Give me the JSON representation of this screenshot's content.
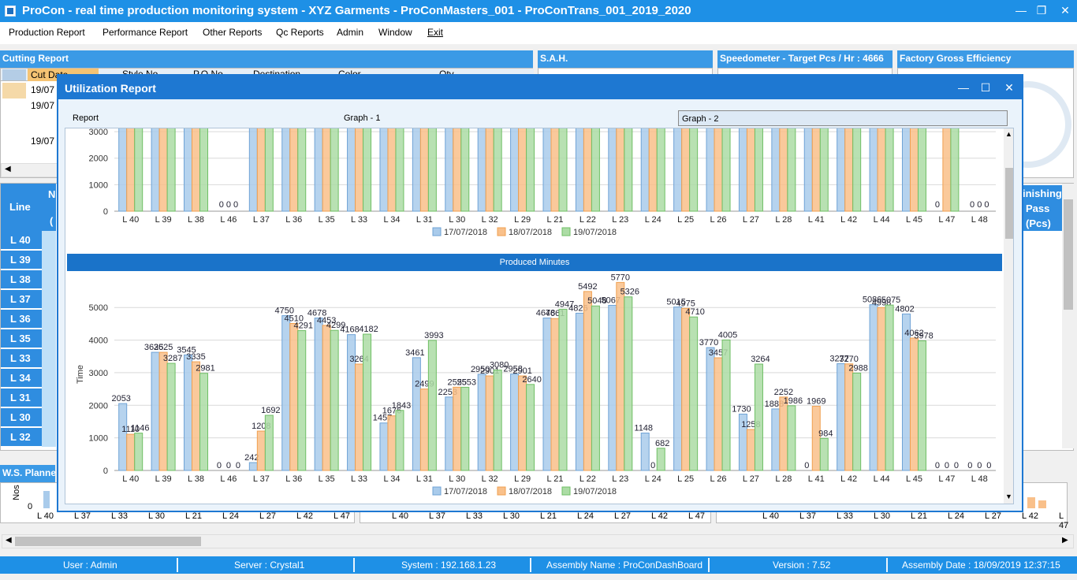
{
  "window": {
    "title": "ProCon - real time production monitoring system - XYZ Garments - ProConMasters_001 - ProConTrans_001_2019_2020",
    "minimize": "—",
    "restore": "❐",
    "close": "✕"
  },
  "menu": [
    "Production Report",
    "Performance Report",
    "Other Reports",
    "Qc Reports",
    "Admin",
    "Window",
    "Exit"
  ],
  "background": {
    "cutting_report": "Cutting Report",
    "cutting_cols": [
      "Cut Date",
      "Style No",
      "P.O No",
      "Destination",
      "Color",
      "Qty"
    ],
    "cutting_rows": [
      "19/07",
      "19/07",
      "19/07"
    ],
    "sah": "S.A.H.",
    "speedometer": "Speedometer - Target Pcs / Hr : 4666",
    "factory_eff": "Factory Gross Efficiency",
    "line_header": "Line",
    "line_col2": "N",
    "line_col3": "(",
    "lines": [
      "L 40",
      "L 39",
      "L 38",
      "L 37",
      "L 36",
      "L 35",
      "L 33",
      "L 34",
      "L 31",
      "L 30",
      "L 32"
    ],
    "finishing": "inishing",
    "pass": "Pass",
    "pcs": "(Pcs)",
    "ws_planned": "W.S. Planne",
    "nos_label": "Nos",
    "nos_zero": "0",
    "bottom_labels_left": [
      "L 40",
      "L 37",
      "L 33",
      "L 30",
      "L 21",
      "L 24",
      "L 27",
      "L 42",
      "L 47"
    ],
    "bottom_labels_mid": [
      "L 40",
      "L 37",
      "L 33",
      "L 30",
      "L 21",
      "L 24",
      "L 27",
      "L 42",
      "L 47"
    ],
    "bottom_labels_right": [
      "L 40",
      "L 37",
      "L 33",
      "L 30",
      "L 21",
      "L 24",
      "L 27",
      "L 42",
      "L 47"
    ]
  },
  "status": {
    "user": "User : Admin",
    "server": "Server : Crystal1",
    "system": "System : 192.168.1.23",
    "assembly": "Assembly Name : ProConDashBoard",
    "version": "Version : 7.52",
    "assembly_date": "Assembly Date : 18/09/2019 12:37:15"
  },
  "dialog": {
    "title": "Utilization Report",
    "tabs": [
      "Report",
      "Graph - 1",
      "Graph - 2"
    ],
    "active_tab": "Graph - 2"
  },
  "colors": {
    "series1": "#a9cbeb",
    "series1_stroke": "#6fa3d6",
    "series2": "#f9c08a",
    "series2_stroke": "#f0a050",
    "series3": "#acdca5",
    "series3_stroke": "#6fbf65"
  },
  "chart_data": [
    {
      "type": "bar",
      "title": "",
      "categories": [
        "L 40",
        "L 39",
        "L 38",
        "L 46",
        "L 37",
        "L 36",
        "L 35",
        "L 33",
        "L 34",
        "L 31",
        "L 30",
        "L 32",
        "L 29",
        "L 21",
        "L 22",
        "L 23",
        "L 24",
        "L 25",
        "L 26",
        "L 27",
        "L 28",
        "L 41",
        "L 42",
        "L 44",
        "L 45",
        "L 47",
        "L 48"
      ],
      "y_ticks": [
        "0",
        "1000",
        "2000",
        "3000"
      ],
      "ylim": [
        0,
        3300
      ],
      "grid": true,
      "legend": "bottom",
      "note_visible_zero_labels": [
        "0 0 0",
        "0",
        "0 0 0"
      ],
      "series": [
        {
          "name": "17/07/2018",
          "values": [
            3300,
            3300,
            3300,
            0,
            3300,
            3300,
            3300,
            3300,
            3300,
            3300,
            3300,
            3300,
            3300,
            3300,
            3300,
            3300,
            3300,
            3300,
            3300,
            3300,
            3300,
            3300,
            3300,
            3300,
            3300,
            0,
            0
          ]
        },
        {
          "name": "18/07/2018",
          "values": [
            3300,
            3300,
            3300,
            0,
            3300,
            3300,
            3300,
            3300,
            3300,
            3300,
            3300,
            3300,
            3300,
            3300,
            3300,
            3300,
            3300,
            3300,
            3300,
            3300,
            3300,
            3300,
            3300,
            3300,
            3300,
            3300,
            0
          ]
        },
        {
          "name": "19/07/2018",
          "values": [
            3300,
            3300,
            3300,
            0,
            3300,
            3300,
            3300,
            3300,
            3300,
            3300,
            3300,
            3300,
            3300,
            3300,
            3300,
            3300,
            3300,
            3300,
            3300,
            3300,
            3300,
            3300,
            3300,
            3300,
            3300,
            3300,
            0
          ]
        }
      ]
    },
    {
      "type": "bar",
      "title": "Produced Minutes",
      "ylabel": "Time",
      "categories": [
        "L 40",
        "L 39",
        "L 38",
        "L 46",
        "L 37",
        "L 36",
        "L 35",
        "L 33",
        "L 34",
        "L 31",
        "L 30",
        "L 32",
        "L 29",
        "L 21",
        "L 22",
        "L 23",
        "L 24",
        "L 25",
        "L 26",
        "L 27",
        "L 28",
        "L 41",
        "L 42",
        "L 44",
        "L 45",
        "L 47",
        "L 48"
      ],
      "y_ticks": [
        "0",
        "1000",
        "2000",
        "3000",
        "4000",
        "5000"
      ],
      "ylim": [
        0,
        5900
      ],
      "grid": true,
      "legend": "bottom",
      "series": [
        {
          "name": "17/07/2018",
          "values": [
            2053,
            3625,
            3545,
            0,
            242,
            4750,
            4678,
            4168,
            1457,
            3461,
            2253,
            2950,
            2958,
            4678,
            4826,
            5067,
            1148,
            5015,
            3770,
            1730,
            1888,
            0,
            3277,
            5086,
            4802,
            0,
            0
          ]
        },
        {
          "name": "18/07/2018",
          "values": [
            1110,
            3625,
            3335,
            0,
            1208,
            4510,
            4453,
            3264,
            1676,
            2499,
            2555,
            2901,
            2901,
            4661,
            5492,
            5770,
            0,
            4975,
            3457,
            1258,
            2252,
            1969,
            3270,
            4998,
            4062,
            0,
            0
          ]
        },
        {
          "name": "19/07/2018",
          "values": [
            1146,
            3287,
            2981,
            0,
            1692,
            4291,
            4299,
            4182,
            1843,
            3993,
            2553,
            3080,
            2640,
            4947,
            5048,
            5326,
            682,
            4710,
            4005,
            3264,
            1986,
            984,
            2988,
            5075,
            3978,
            0,
            0
          ]
        }
      ]
    }
  ]
}
